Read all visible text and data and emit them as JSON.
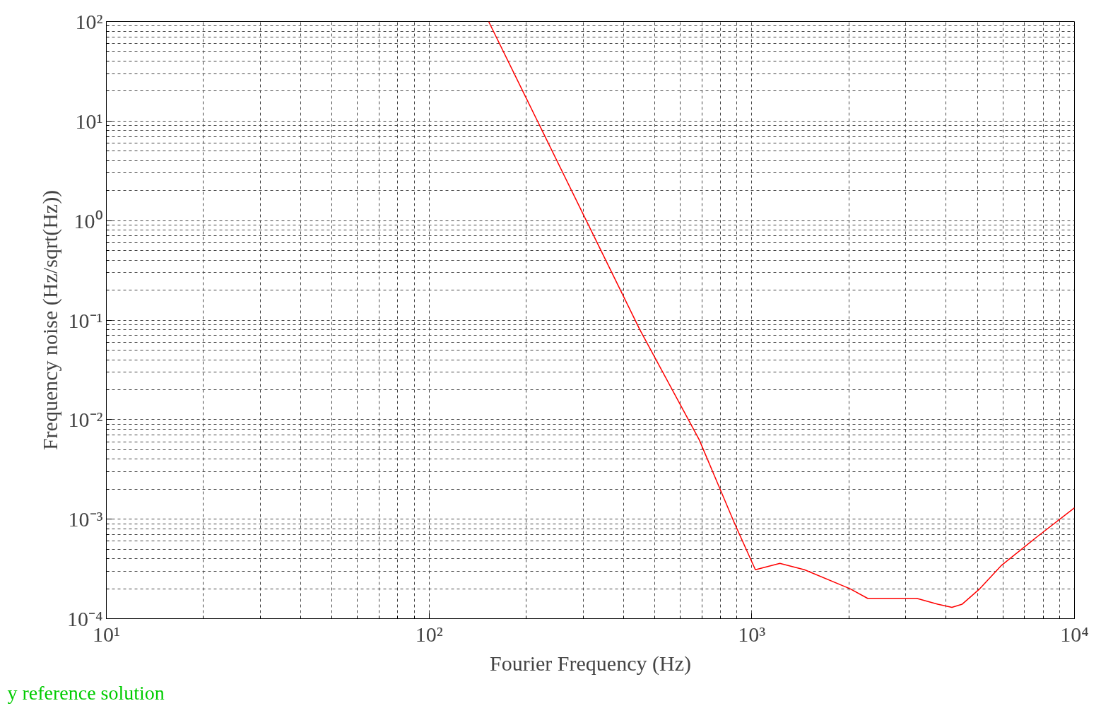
{
  "chart_data": {
    "type": "line",
    "xlabel": "Fourier Frequency (Hz)",
    "ylabel": "Frequency noise (Hz/sqrt(Hz))",
    "log": "xy",
    "grid": true,
    "xlim": [
      10,
      10000
    ],
    "ylim": [
      0.0001,
      100
    ],
    "xticks": [
      {
        "value": 10,
        "label": "10¹"
      },
      {
        "value": 100,
        "label": "10²"
      },
      {
        "value": 1000,
        "label": "10³"
      },
      {
        "value": 10000,
        "label": "10⁴"
      }
    ],
    "yticks": [
      {
        "value": 0.0001,
        "label": "10⁻⁴"
      },
      {
        "value": 0.001,
        "label": "10⁻³"
      },
      {
        "value": 0.01,
        "label": "10⁻²"
      },
      {
        "value": 0.1,
        "label": "10⁻¹"
      },
      {
        "value": 1,
        "label": "10⁰"
      },
      {
        "value": 10,
        "label": "10¹"
      },
      {
        "value": 100,
        "label": "10²"
      }
    ],
    "x": [
      153,
      200,
      308,
      450,
      687,
      884,
      1026,
      1222,
      1456,
      2015,
      2285,
      3243,
      3766,
      4170,
      4490,
      5090,
      5920,
      7590,
      10000
    ],
    "series": [
      {
        "color": "#ff0000",
        "values": [
          100,
          17,
          0.98,
          0.08,
          0.0063,
          0.00091,
          0.00031,
          0.00036,
          0.00031,
          0.0002,
          0.00016,
          0.00016,
          0.00014,
          0.00013,
          0.00014,
          0.0002,
          0.00034,
          0.00065,
          0.0013
        ]
      }
    ],
    "annotations": [
      "y reference solution"
    ]
  }
}
